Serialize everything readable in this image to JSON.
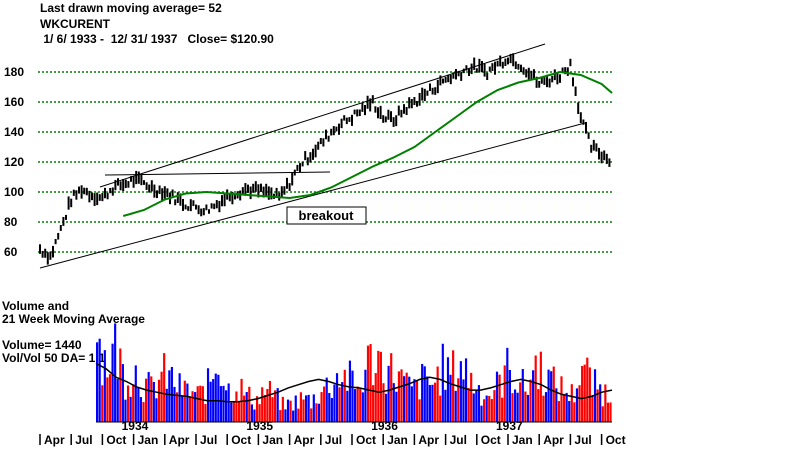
{
  "header": {
    "line1": "Last drawn moving average= 52",
    "line2": "WKCURENT",
    "line3": " 1/ 6/ 1933 -  12/ 31/ 1937   Close= $120.90"
  },
  "annotation": {
    "label": "breakout"
  },
  "volume_panel": {
    "title_line1": "Volume and",
    "title_line2": "21 Week Moving Average",
    "volume_text": "Volume= 1440",
    "ratio_text": "Vol/Vol 50 DA= 1.1"
  },
  "colors": {
    "price_bars": "#000000",
    "moving_average": "#008000",
    "gridlines": "#008000",
    "volume_up": "#ff0000",
    "volume_down": "#0000ff",
    "volume_ma": "#000000"
  },
  "chart_data": [
    {
      "type": "line",
      "subtype": "weekly price bars with moving average",
      "title": "WKCURENT",
      "ylim": [
        50,
        195
      ],
      "yticks": [
        60,
        80,
        100,
        120,
        140,
        160,
        180
      ],
      "grid": true,
      "x_range": [
        "1933-04",
        "1937-11"
      ],
      "series": [
        {
          "name": "",
          "role": "price",
          "x": [
            "1933-04",
            "1933-05",
            "1933-06",
            "1933-07",
            "1933-08",
            "1933-09",
            "1933-10",
            "1933-11",
            "1933-12",
            "1934-01",
            "1934-02",
            "1934-03",
            "1934-04",
            "1934-05",
            "1934-06",
            "1934-07",
            "1934-08",
            "1934-09",
            "1934-10",
            "1934-11",
            "1934-12",
            "1935-01",
            "1935-02",
            "1935-03",
            "1935-04",
            "1935-05",
            "1935-06",
            "1935-07",
            "1935-08",
            "1935-09",
            "1935-10",
            "1935-11",
            "1935-12",
            "1936-01",
            "1936-02",
            "1936-03",
            "1936-04",
            "1936-05",
            "1936-06",
            "1936-07",
            "1936-08",
            "1936-09",
            "1936-10",
            "1936-11",
            "1936-12",
            "1937-01",
            "1937-02",
            "1937-03",
            "1937-04",
            "1937-05",
            "1937-06",
            "1937-07",
            "1937-08",
            "1937-09",
            "1937-10",
            "1937-11"
          ],
          "values": [
            62,
            57,
            75,
            95,
            102,
            98,
            96,
            103,
            105,
            108,
            106,
            102,
            100,
            96,
            92,
            90,
            88,
            92,
            97,
            100,
            102,
            101,
            99,
            96,
            106,
            118,
            125,
            132,
            140,
            146,
            150,
            155,
            160,
            150,
            148,
            155,
            160,
            165,
            170,
            175,
            178,
            182,
            183,
            180,
            185,
            190,
            186,
            180,
            172,
            175,
            178,
            185,
            150,
            130,
            125,
            121
          ]
        },
        {
          "name": "",
          "role": "moving average (52 wk)",
          "x": [
            "1933-12",
            "1934-02",
            "1934-04",
            "1934-06",
            "1934-08",
            "1934-10",
            "1934-12",
            "1935-02",
            "1935-04",
            "1935-06",
            "1935-08",
            "1935-10",
            "1935-12",
            "1936-02",
            "1936-04",
            "1936-06",
            "1936-08",
            "1936-10",
            "1936-12",
            "1937-02",
            "1937-04",
            "1937-06",
            "1937-08",
            "1937-10",
            "1937-11"
          ],
          "values": [
            84,
            88,
            95,
            99,
            100,
            99,
            98,
            97,
            96,
            98,
            103,
            110,
            117,
            123,
            130,
            140,
            150,
            160,
            168,
            173,
            176,
            180,
            178,
            172,
            166
          ]
        }
      ]
    },
    {
      "type": "bar",
      "title": "Volume and 21 Week Moving Average",
      "x_labels": [
        "Apr",
        "Jul",
        "Oct",
        "Jan",
        "Apr",
        "Jul",
        "Oct",
        "Jan",
        "Apr",
        "Jul",
        "Oct",
        "Jan",
        "Apr",
        "Jul",
        "Oct",
        "Jan",
        "Apr",
        "Jul",
        "Oct"
      ],
      "year_labels": [
        "1934",
        "1935",
        "1936",
        "1937"
      ],
      "series": [
        {
          "name": "",
          "role": "weekly volume (relative)",
          "values": [
            0.85,
            0.55,
            0.7,
            0.4,
            0.5,
            0.35,
            0.3,
            0.45,
            0.4,
            0.3,
            0.28,
            0.25,
            0.35,
            0.6,
            0.3,
            0.35,
            0.25,
            0.2,
            0.3,
            0.25,
            0.15,
            0.18,
            0.22,
            0.2,
            0.3,
            0.35,
            0.45,
            0.4,
            0.3,
            0.55,
            0.6,
            0.5,
            0.45,
            0.35,
            0.3,
            0.4,
            0.35,
            0.5,
            0.45,
            0.55,
            0.4,
            0.3,
            0.25,
            0.35,
            0.5,
            0.4,
            0.3,
            0.55,
            0.45,
            0.35,
            0.3,
            0.25,
            0.55,
            0.35,
            0.3,
            0.25
          ]
        },
        {
          "name": "",
          "role": "21 week moving average",
          "values": [
            0.55,
            0.5,
            0.42,
            0.38,
            0.33,
            0.3,
            0.28,
            0.26,
            0.25,
            0.24,
            0.22,
            0.2,
            0.2,
            0.19,
            0.19,
            0.2,
            0.22,
            0.25,
            0.28,
            0.32,
            0.35,
            0.38,
            0.4,
            0.38,
            0.35,
            0.33,
            0.32,
            0.3,
            0.28,
            0.3,
            0.33,
            0.36,
            0.4,
            0.42,
            0.4,
            0.36,
            0.33,
            0.3,
            0.3,
            0.32,
            0.35,
            0.38,
            0.4,
            0.38,
            0.35,
            0.3,
            0.26,
            0.24,
            0.22,
            0.24,
            0.28,
            0.3
          ]
        }
      ]
    }
  ]
}
